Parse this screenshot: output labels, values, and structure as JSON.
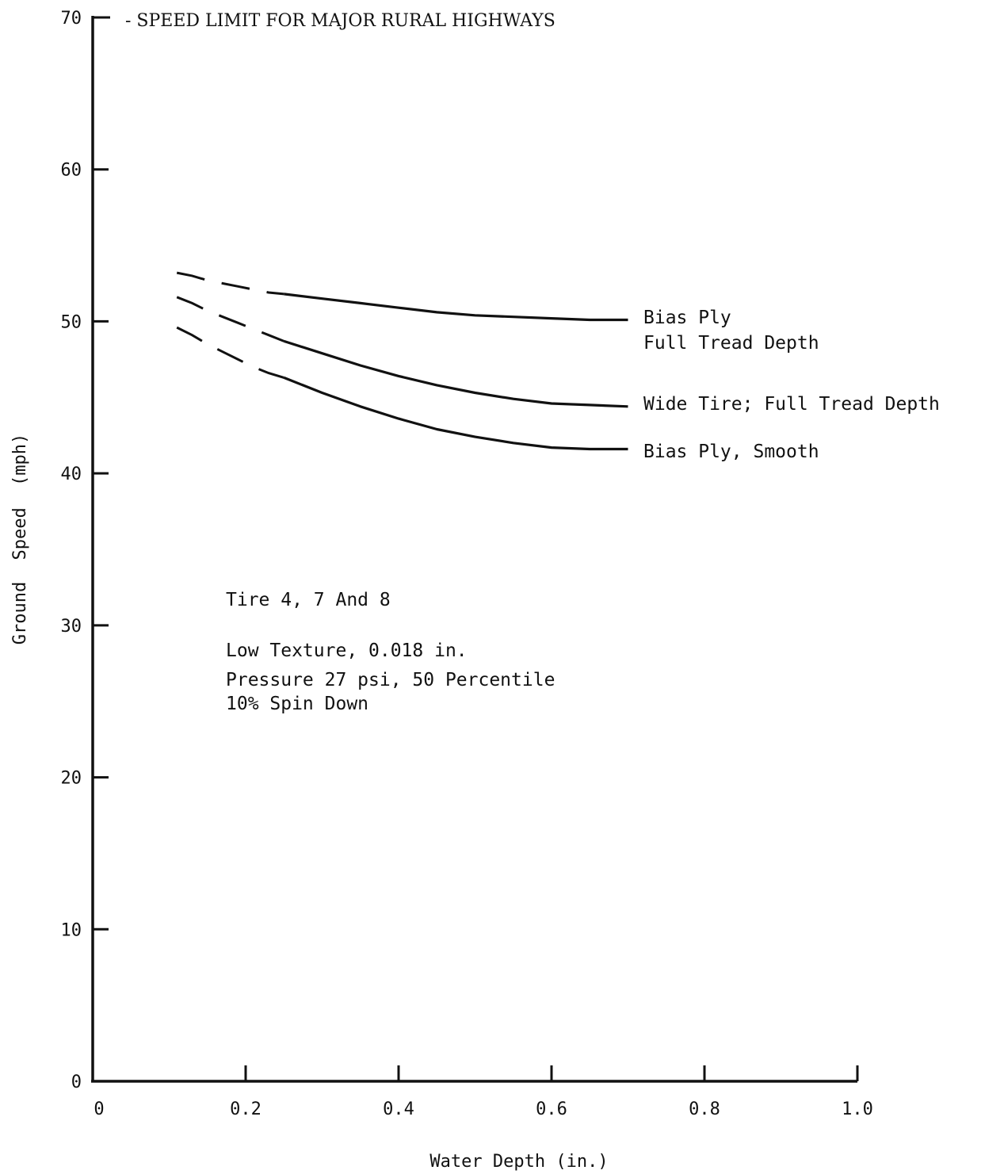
{
  "chart_data": {
    "type": "line",
    "title": "",
    "xlabel": "Water Depth (in.)",
    "ylabel": "Ground Speed (mph)",
    "xlim": [
      0,
      1.0
    ],
    "ylim": [
      0,
      70
    ],
    "x_ticks": [
      0,
      0.2,
      0.4,
      0.6,
      0.8,
      1.0
    ],
    "x_tick_labels": [
      "0",
      "0.2",
      "0.4",
      "0.6",
      "0.8",
      "1.0"
    ],
    "y_ticks": [
      0,
      10,
      20,
      30,
      40,
      50,
      60,
      70
    ],
    "y_tick_labels": [
      "0",
      "10",
      "20",
      "30",
      "40",
      "50",
      "60",
      "70"
    ],
    "grid": false,
    "reference_line": {
      "y": 70,
      "label": "- SPEED LIMIT FOR MAJOR RURAL HIGHWAYS"
    },
    "series": [
      {
        "name_lines": [
          "Bias Ply",
          "Full Tread Depth"
        ],
        "dashed_x": [
          0.11,
          0.13,
          0.15,
          0.17,
          0.19,
          0.21,
          0.23,
          0.25
        ],
        "dashed_y": [
          53.2,
          53.0,
          52.7,
          52.5,
          52.3,
          52.1,
          51.9,
          51.8
        ],
        "x": [
          0.25,
          0.3,
          0.35,
          0.4,
          0.45,
          0.5,
          0.55,
          0.6,
          0.65,
          0.7
        ],
        "y": [
          51.8,
          51.5,
          51.2,
          50.9,
          50.6,
          50.4,
          50.3,
          50.2,
          50.1,
          50.1
        ]
      },
      {
        "name_lines": [
          "Wide Tire; Full Tread Depth"
        ],
        "dashed_x": [
          0.11,
          0.13,
          0.15,
          0.17,
          0.19,
          0.21,
          0.23,
          0.25
        ],
        "dashed_y": [
          51.6,
          51.2,
          50.7,
          50.3,
          49.9,
          49.5,
          49.1,
          48.7
        ],
        "x": [
          0.25,
          0.3,
          0.35,
          0.4,
          0.45,
          0.5,
          0.55,
          0.6,
          0.65,
          0.7
        ],
        "y": [
          48.7,
          47.9,
          47.1,
          46.4,
          45.8,
          45.3,
          44.9,
          44.6,
          44.5,
          44.4
        ]
      },
      {
        "name_lines": [
          "Bias Ply, Smooth"
        ],
        "dashed_x": [
          0.11,
          0.13,
          0.15,
          0.17,
          0.19,
          0.21,
          0.23,
          0.25
        ],
        "dashed_y": [
          49.6,
          49.1,
          48.5,
          48.0,
          47.5,
          47.0,
          46.6,
          46.3
        ],
        "x": [
          0.25,
          0.3,
          0.35,
          0.4,
          0.45,
          0.5,
          0.55,
          0.6,
          0.65,
          0.7
        ],
        "y": [
          46.3,
          45.3,
          44.4,
          43.6,
          42.9,
          42.4,
          42.0,
          41.7,
          41.6,
          41.6
        ]
      }
    ],
    "annotation": {
      "lines": [
        "Tire 4, 7 And 8",
        "Low Texture, 0.018 in.",
        "Pressure 27 psi, 50 Percentile",
        "10% Spin Down"
      ]
    },
    "colors": {
      "line": "#111111",
      "background": "#ffffff"
    }
  }
}
